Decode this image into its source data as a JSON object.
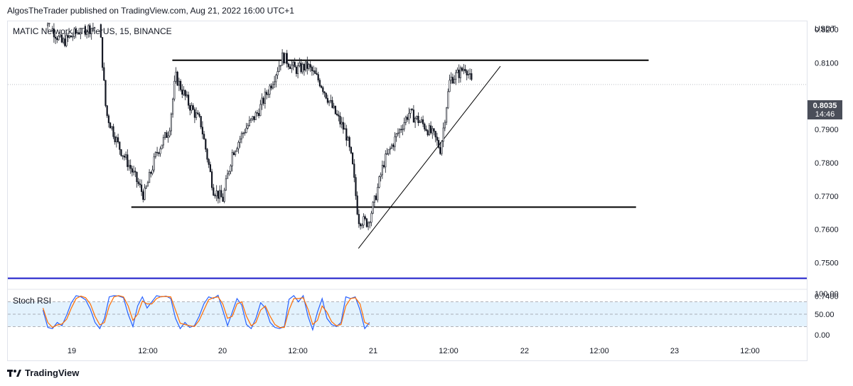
{
  "header": {
    "publisher": "AlgosTheTrader published on TradingView.com, Aug 21, 2022 16:00 UTC+1",
    "symbol": "MATIC Network / TetherUS, 15, BINANCE",
    "currency": "USDT"
  },
  "footer": {
    "brand": "TradingView",
    "logo_icon": "tradingview-logo-icon"
  },
  "last_price": {
    "price": "0.8035",
    "countdown": "14:46"
  },
  "colors": {
    "candle": "#131722",
    "blue_line": "#1a1ac8",
    "rsi_k": "#2962ff",
    "rsi_d": "#ff6d00",
    "rsi_band": "#e3f2fd"
  },
  "chart_data": [
    {
      "type": "candlestick",
      "title": "MATIC Network / TetherUS, 15, BINANCE",
      "ylabel": "USDT",
      "ylim": [
        0.742,
        0.8225
      ],
      "x_ticks": [
        "19",
        "12:00",
        "20",
        "12:00",
        "21",
        "12:00",
        "22",
        "12:00",
        "23",
        "12:00"
      ],
      "y_ticks": [
        "0.8200",
        "0.8100",
        "0.7900",
        "0.7800",
        "0.7700",
        "0.7600",
        "0.7500",
        "0.7400"
      ],
      "grid": false,
      "series": [
        {
          "name": "Price path (approx.)",
          "points": [
            [
              "Aug 18 20:00",
              0.824
            ],
            [
              "Aug 18 23:00",
              0.816
            ],
            [
              "Aug 19 02:00",
              0.82
            ],
            [
              "Aug 19 05:00",
              0.821
            ],
            [
              "Aug 19 06:00",
              0.795
            ],
            [
              "Aug 19 08:00",
              0.785
            ],
            [
              "Aug 19 10:00",
              0.778
            ],
            [
              "Aug 19 12:00",
              0.77
            ],
            [
              "Aug 19 14:00",
              0.783
            ],
            [
              "Aug 19 16:00",
              0.79
            ],
            [
              "Aug 19 17:00",
              0.806
            ],
            [
              "Aug 19 19:00",
              0.798
            ],
            [
              "Aug 19 21:00",
              0.792
            ],
            [
              "Aug 19 23:00",
              0.772
            ],
            [
              "Aug 20 00:30",
              0.769
            ],
            [
              "Aug 20 02:00",
              0.783
            ],
            [
              "Aug 20 04:00",
              0.79
            ],
            [
              "Aug 20 06:00",
              0.795
            ],
            [
              "Aug 20 08:00",
              0.803
            ],
            [
              "Aug 20 10:00",
              0.812
            ],
            [
              "Aug 20 12:00",
              0.808
            ],
            [
              "Aug 20 14:00",
              0.809
            ],
            [
              "Aug 20 16:00",
              0.804
            ],
            [
              "Aug 20 18:00",
              0.796
            ],
            [
              "Aug 20 20:00",
              0.789
            ],
            [
              "Aug 20 21:00",
              0.78
            ],
            [
              "Aug 20 22:00",
              0.763
            ],
            [
              "Aug 20 23:30",
              0.762
            ],
            [
              "Aug 21 00:30",
              0.768
            ],
            [
              "Aug 21 02:00",
              0.78
            ],
            [
              "Aug 21 04:00",
              0.788
            ],
            [
              "Aug 21 06:00",
              0.795
            ],
            [
              "Aug 21 08:00",
              0.792
            ],
            [
              "Aug 21 10:00",
              0.788
            ],
            [
              "Aug 21 11:00",
              0.784
            ],
            [
              "Aug 21 12:30",
              0.805
            ],
            [
              "Aug 21 14:00",
              0.807
            ],
            [
              "Aug 21 15:00",
              0.809
            ],
            [
              "Aug 21 16:00",
              0.8035
            ]
          ]
        }
      ],
      "levels": [
        {
          "name": "Resistance",
          "value": 0.8108,
          "from": "Aug 19 16:30",
          "to": "Aug 22 20:00"
        },
        {
          "name": "Support",
          "value": 0.7667,
          "from": "Aug 19 10:00",
          "to": "Aug 22 18:00"
        },
        {
          "name": "Horizontal line",
          "value": 0.7453
        }
      ],
      "trendline": {
        "from": [
          "Aug 20 22:00",
          0.7543
        ],
        "to": [
          "Aug 21 20:30",
          0.809
        ]
      }
    },
    {
      "type": "line",
      "title": "Stoch RSI",
      "ylim": [
        0,
        100
      ],
      "y_ticks": [
        "100.00",
        "50.00",
        "0.00"
      ],
      "bands": [
        20,
        80
      ],
      "series": [
        {
          "name": "K",
          "x_start": "Aug 18 20:00",
          "step_hours": 0.75,
          "values": [
            60,
            18,
            15,
            30,
            22,
            48,
            78,
            95,
            92,
            85,
            62,
            30,
            15,
            40,
            92,
            95,
            94,
            90,
            50,
            20,
            70,
            92,
            65,
            80,
            95,
            92,
            94,
            88,
            40,
            15,
            30,
            18,
            22,
            45,
            75,
            92,
            88,
            96,
            60,
            22,
            55,
            88,
            72,
            25,
            15,
            40,
            78,
            65,
            30,
            18,
            15,
            20,
            86,
            95,
            80,
            95,
            45,
            12,
            55,
            88,
            40,
            25,
            20,
            30,
            92,
            88,
            92,
            60,
            15,
            30
          ]
        },
        {
          "name": "D",
          "x_start": "Aug 18 20:00",
          "step_hours": 0.75,
          "values": [
            65,
            30,
            18,
            24,
            26,
            38,
            65,
            88,
            94,
            90,
            75,
            45,
            24,
            30,
            70,
            92,
            95,
            92,
            70,
            35,
            50,
            82,
            75,
            75,
            88,
            93,
            93,
            92,
            60,
            28,
            25,
            22,
            20,
            35,
            60,
            85,
            90,
            92,
            75,
            40,
            45,
            75,
            80,
            45,
            22,
            30,
            60,
            70,
            45,
            25,
            18,
            18,
            60,
            88,
            88,
            90,
            62,
            25,
            35,
            70,
            55,
            32,
            22,
            25,
            70,
            88,
            90,
            75,
            30,
            25
          ]
        }
      ]
    }
  ]
}
